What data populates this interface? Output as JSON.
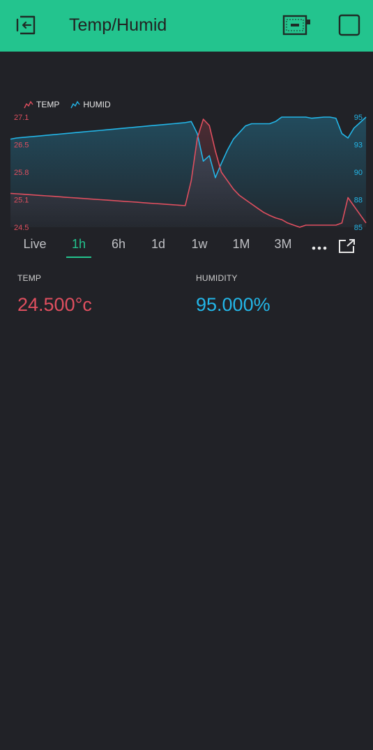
{
  "header": {
    "title": "Temp/Humid",
    "back_icon": "back-exit-icon",
    "device_icon": "device-status-icon",
    "square_icon": "square-icon",
    "color": "#23c48e"
  },
  "colors": {
    "background": "#212227",
    "temp": "#e04f5f",
    "humid": "#23b6e8",
    "accent": "#23c48e"
  },
  "chart_data": {
    "type": "line",
    "legend": {
      "placement": "top-left",
      "entries": [
        "TEMP",
        "HUMID"
      ]
    },
    "grid": false,
    "x": [
      0,
      1,
      2,
      3,
      4,
      5,
      6,
      7,
      8,
      9,
      10,
      11,
      12,
      13,
      14,
      15,
      16,
      17,
      18,
      19,
      20,
      21,
      22,
      23,
      24,
      25,
      26,
      27,
      28,
      29,
      30,
      31,
      32,
      33,
      34,
      35,
      36,
      37,
      38,
      39,
      40,
      41,
      42,
      43,
      44,
      45,
      46,
      47,
      48,
      49,
      50,
      51,
      52,
      53,
      54,
      55,
      56,
      57,
      58,
      59
    ],
    "y_left": {
      "ticks": [
        "27.1",
        "26.5",
        "25.8",
        "25.1",
        "24.5"
      ],
      "range": [
        24.5,
        27.1
      ]
    },
    "y_right": {
      "ticks": [
        "95",
        "93",
        "90",
        "88",
        "85"
      ],
      "range": [
        85,
        95
      ]
    },
    "series": [
      {
        "name": "TEMP",
        "axis": "left",
        "values": [
          25.3,
          25.29,
          25.28,
          25.27,
          25.26,
          25.25,
          25.24,
          25.23,
          25.22,
          25.21,
          25.2,
          25.19,
          25.18,
          25.17,
          25.16,
          25.15,
          25.14,
          25.13,
          25.12,
          25.11,
          25.1,
          25.09,
          25.08,
          25.07,
          25.06,
          25.05,
          25.04,
          25.03,
          25.02,
          25.01,
          25.6,
          26.6,
          27.05,
          26.9,
          26.3,
          25.8,
          25.6,
          25.4,
          25.25,
          25.15,
          25.05,
          24.95,
          24.85,
          24.78,
          24.72,
          24.68,
          24.6,
          24.55,
          24.5,
          24.55,
          24.55,
          24.55,
          24.55,
          24.55,
          24.55,
          24.6,
          25.2,
          25.0,
          24.8,
          24.6
        ]
      },
      {
        "name": "HUMID",
        "axis": "right",
        "values": [
          93.0,
          93.1,
          93.15,
          93.2,
          93.25,
          93.3,
          93.35,
          93.4,
          93.45,
          93.5,
          93.55,
          93.6,
          93.65,
          93.7,
          93.75,
          93.8,
          93.85,
          93.9,
          93.95,
          94.0,
          94.05,
          94.1,
          94.15,
          94.2,
          94.25,
          94.3,
          94.35,
          94.4,
          94.45,
          94.5,
          94.6,
          93.5,
          91.0,
          91.5,
          89.5,
          90.8,
          92.0,
          93.0,
          93.6,
          94.2,
          94.4,
          94.4,
          94.4,
          94.4,
          94.6,
          95.0,
          95.0,
          95.0,
          95.0,
          95.0,
          94.9,
          94.95,
          95.0,
          95.0,
          94.9,
          93.5,
          93.1,
          94.0,
          94.5,
          95.0
        ]
      }
    ]
  },
  "ranges": {
    "items": [
      "Live",
      "1h",
      "6h",
      "1d",
      "1w",
      "1M",
      "3M"
    ],
    "active": 1,
    "more_icon": "more-dots-icon",
    "expand_icon": "expand-icon"
  },
  "values": {
    "temp": {
      "label": "TEMP",
      "value": "24.500°c"
    },
    "humid": {
      "label": "HUMIDITY",
      "value": "95.000%"
    }
  }
}
